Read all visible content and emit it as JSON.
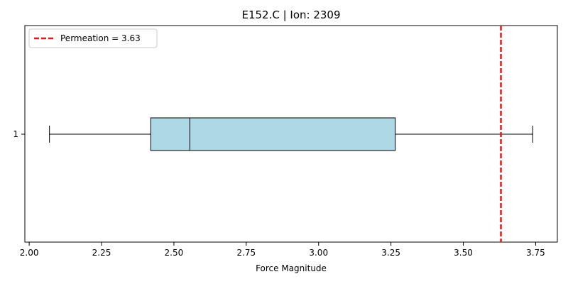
{
  "chart_data": {
    "type": "boxplot",
    "orientation": "horizontal",
    "title": "E152.C | Ion: 2309",
    "xlabel": "Force Magnitude",
    "ylabel": "",
    "xlim": [
      1.985,
      3.825
    ],
    "x_ticks": [
      "2.00",
      "2.25",
      "2.50",
      "2.75",
      "3.00",
      "3.25",
      "3.50",
      "3.75"
    ],
    "x_tick_values": [
      2.0,
      2.25,
      2.5,
      2.75,
      3.0,
      3.25,
      3.5,
      3.75
    ],
    "y_ticks": [
      "1"
    ],
    "grid": false,
    "box": {
      "category": "1",
      "whisker_low": 2.07,
      "q1": 2.42,
      "median": 2.555,
      "q3": 3.265,
      "whisker_high": 3.74,
      "fill_color": "#add8e6",
      "edge_color": "#000000"
    },
    "reference_line": {
      "value": 3.63,
      "label": "Permeation = 3.63",
      "color": "#e31a1c",
      "style": "dashed"
    },
    "legend": {
      "position": "upper-left"
    }
  }
}
